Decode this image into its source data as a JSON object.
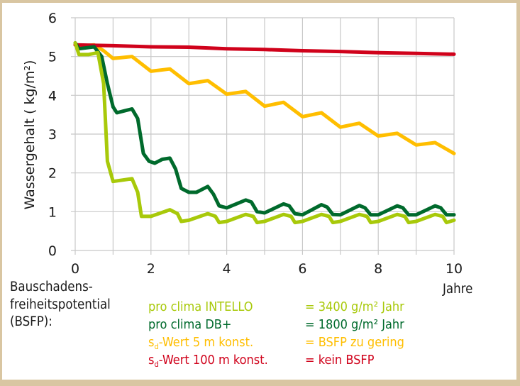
{
  "chart_data": {
    "type": "line",
    "title": "",
    "xlabel": "Jahre",
    "ylabel": "Wassergehalt ( kg/m²)",
    "xlim": [
      0,
      10
    ],
    "ylim": [
      0,
      6
    ],
    "x_ticks": [
      "0",
      "2",
      "4",
      "6",
      "8",
      "10"
    ],
    "y_ticks": [
      "0",
      "1",
      "2",
      "3",
      "4",
      "5",
      "6"
    ],
    "grid": true,
    "legend_position": "below",
    "series": [
      {
        "name": "pro clima INTELLO",
        "color": "#a8c90a",
        "x": [
          0,
          0.1,
          0.35,
          0.6,
          0.75,
          0.85,
          1.0,
          1.5,
          1.65,
          1.75,
          2.0,
          2.5,
          2.7,
          2.8,
          3.0,
          3.5,
          3.7,
          3.8,
          4.0,
          4.5,
          4.7,
          4.8,
          5.0,
          5.5,
          5.7,
          5.8,
          6.0,
          6.5,
          6.7,
          6.8,
          7.0,
          7.5,
          7.7,
          7.8,
          8.0,
          8.5,
          8.7,
          8.8,
          9.0,
          9.5,
          9.7,
          9.8,
          10.0
        ],
        "values": [
          5.35,
          5.05,
          5.05,
          5.1,
          4.3,
          2.3,
          1.78,
          1.85,
          1.5,
          0.88,
          0.88,
          1.05,
          0.95,
          0.75,
          0.78,
          0.95,
          0.88,
          0.72,
          0.75,
          0.93,
          0.88,
          0.72,
          0.75,
          0.93,
          0.88,
          0.72,
          0.75,
          0.93,
          0.88,
          0.72,
          0.75,
          0.93,
          0.88,
          0.72,
          0.75,
          0.93,
          0.88,
          0.72,
          0.75,
          0.93,
          0.88,
          0.72,
          0.78
        ]
      },
      {
        "name": "pro clima DB+",
        "color": "#006a2c",
        "x": [
          0,
          0.1,
          0.5,
          0.7,
          0.85,
          1.0,
          1.1,
          1.3,
          1.5,
          1.65,
          1.8,
          1.95,
          2.1,
          2.3,
          2.5,
          2.65,
          2.8,
          3.0,
          3.2,
          3.5,
          3.65,
          3.8,
          4.0,
          4.5,
          4.65,
          4.8,
          5.0,
          5.5,
          5.65,
          5.8,
          6.0,
          6.5,
          6.65,
          6.8,
          7.0,
          7.5,
          7.65,
          7.8,
          8.0,
          8.5,
          8.65,
          8.8,
          9.0,
          9.5,
          9.65,
          9.8,
          10.0
        ],
        "values": [
          5.35,
          5.2,
          5.25,
          5.0,
          4.3,
          3.7,
          3.55,
          3.6,
          3.65,
          3.4,
          2.5,
          2.3,
          2.25,
          2.35,
          2.38,
          2.1,
          1.6,
          1.5,
          1.5,
          1.65,
          1.45,
          1.15,
          1.1,
          1.3,
          1.25,
          1.0,
          0.97,
          1.2,
          1.15,
          0.95,
          0.92,
          1.18,
          1.12,
          0.93,
          0.92,
          1.16,
          1.1,
          0.92,
          0.92,
          1.15,
          1.1,
          0.92,
          0.92,
          1.15,
          1.1,
          0.92,
          0.92
        ]
      },
      {
        "name": "sd-Wert 5 m konst.",
        "color": "#ffbe00",
        "x": [
          0,
          0.25,
          0.5,
          0.75,
          1.0,
          1.5,
          2.0,
          2.5,
          3.0,
          3.5,
          4.0,
          4.5,
          5.0,
          5.5,
          6.0,
          6.5,
          7.0,
          7.5,
          8.0,
          8.5,
          9.0,
          9.5,
          10.0
        ],
        "values": [
          5.3,
          5.28,
          5.3,
          5.15,
          4.95,
          5.0,
          4.62,
          4.68,
          4.3,
          4.38,
          4.03,
          4.1,
          3.72,
          3.82,
          3.45,
          3.55,
          3.18,
          3.28,
          2.95,
          3.02,
          2.72,
          2.78,
          2.5
        ]
      },
      {
        "name": "sd-Wert 100 m konst.",
        "color": "#d0021b",
        "x": [
          0,
          1,
          2,
          3,
          4,
          5,
          6,
          7,
          8,
          9,
          10
        ],
        "values": [
          5.3,
          5.28,
          5.25,
          5.24,
          5.2,
          5.18,
          5.15,
          5.13,
          5.1,
          5.08,
          5.06
        ]
      }
    ]
  },
  "axis": {
    "ylabel": "Wassergehalt ( kg/m²)",
    "xunit": "Jahre"
  },
  "legend": {
    "heading_line1": "Bauschadens-",
    "heading_line2": "freiheitspotential",
    "heading_line3": "(BSFP):",
    "items": [
      {
        "name": "pro clima INTELLO",
        "value": "=  3400 g/m² Jahr",
        "color": "#a8c90a"
      },
      {
        "name": "pro clima DB+",
        "value": "=  1800 g/m² Jahr",
        "color": "#006a2c"
      },
      {
        "name_prefix": "s",
        "name_sub": "d",
        "name_rest": "-Wert 5 m konst.",
        "value": "= BSFP zu gering",
        "color": "#ffbe00"
      },
      {
        "name_prefix": "s",
        "name_sub": "d",
        "name_rest": "-Wert 100 m konst.",
        "value": "= kein BSFP",
        "color": "#d0021b"
      }
    ]
  },
  "colors": {
    "frame": "#d9c6a2",
    "grid": "#c8c8c8",
    "text": "#1a1a1a"
  }
}
